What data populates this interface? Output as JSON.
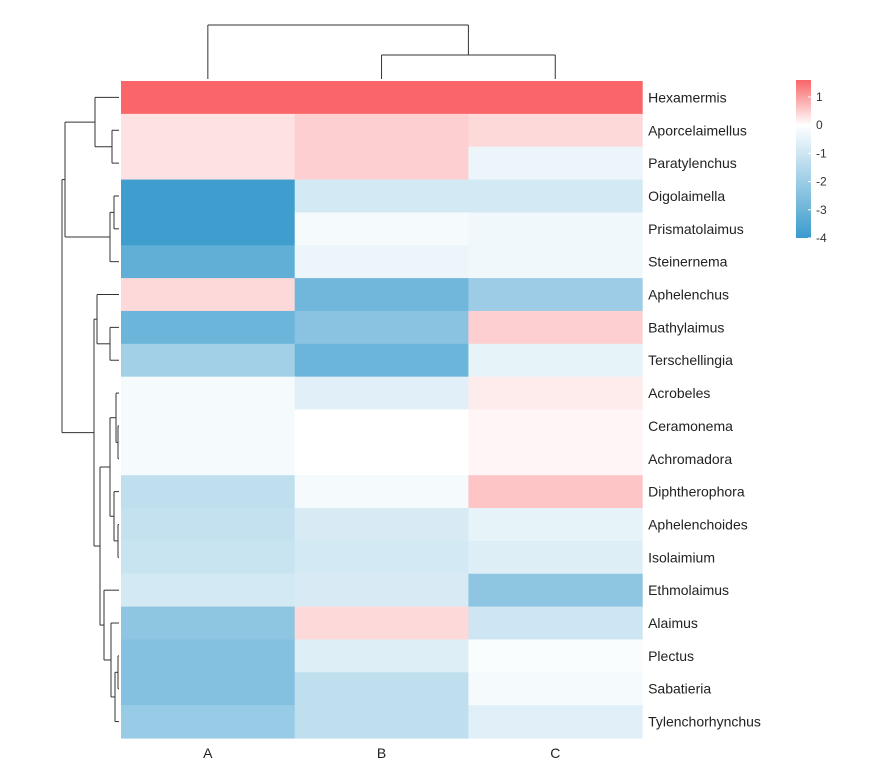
{
  "chart_data": {
    "type": "heatmap",
    "columns": [
      "A",
      "B",
      "C"
    ],
    "rows": [
      "Hexamermis",
      "Aporcelaimellus",
      "Paratylenchus",
      "Oigolaimella",
      "Prismatolaimus",
      "Steinernema",
      "Aphelenchus",
      "Bathylaimus",
      "Terschellingia",
      "Acrobeles",
      "Ceramonema",
      "Achromadora",
      "Diphtherophora",
      "Aphelenchoides",
      "Isolaimium",
      "Ethmolaimus",
      "Alaimus",
      "Plectus",
      "Sabatieria",
      "Tylenchorhynchus"
    ],
    "values": [
      [
        1.6,
        1.6,
        1.6
      ],
      [
        0.3,
        0.5,
        0.4
      ],
      [
        0.3,
        0.5,
        -0.4
      ],
      [
        -3.9,
        -0.9,
        -0.9
      ],
      [
        -3.9,
        -0.2,
        -0.3
      ],
      [
        -3.2,
        -0.4,
        -0.3
      ],
      [
        0.4,
        -2.9,
        -2.0
      ],
      [
        -3.0,
        -2.4,
        0.5
      ],
      [
        -1.9,
        -3.0,
        -0.5
      ],
      [
        -0.2,
        -0.6,
        0.2
      ],
      [
        -0.2,
        0.0,
        0.1
      ],
      [
        -0.2,
        0.0,
        0.1
      ],
      [
        -1.3,
        -0.2,
        0.6
      ],
      [
        -1.2,
        -0.8,
        -0.5
      ],
      [
        -1.1,
        -0.9,
        -0.7
      ],
      [
        -0.9,
        -0.8,
        -2.3
      ],
      [
        -2.3,
        0.4,
        -1.0
      ],
      [
        -2.5,
        -0.7,
        -0.1
      ],
      [
        -2.5,
        -1.3,
        -0.2
      ],
      [
        -2.1,
        -1.3,
        -0.6
      ]
    ],
    "legend": {
      "ticks": [
        "1",
        "0",
        "-1",
        "-2",
        "-3",
        "-4"
      ],
      "tick_values": [
        1,
        0,
        -1,
        -2,
        -3,
        -4
      ],
      "range": [
        -4,
        1.6
      ],
      "colors": {
        "low": "#3a9bcd",
        "mid": "#ffffff",
        "high": "#f96568"
      }
    },
    "column_dendrogram": "((B,C),A)",
    "row_dendrogram": "clustered"
  }
}
